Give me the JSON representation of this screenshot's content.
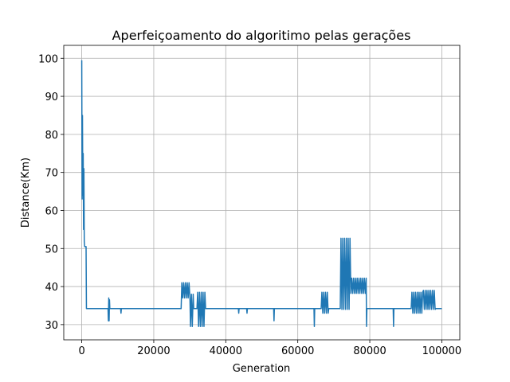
{
  "chart_data": {
    "type": "line",
    "title": "Aperfeiçoamento do algoritimo pelas gerações",
    "xlabel": "Generation",
    "ylabel": "Distance(Km)",
    "xlim": [
      -5000,
      105000
    ],
    "ylim": [
      26,
      103.4
    ],
    "xticks": [
      0,
      20000,
      40000,
      60000,
      80000,
      100000
    ],
    "yticks": [
      30,
      40,
      50,
      60,
      70,
      80,
      90,
      100
    ],
    "grid": true,
    "series": [
      {
        "color": "#1f77b4",
        "x": [
          0,
          100,
          200,
          300,
          400,
          500,
          600,
          700,
          800,
          1000,
          1200,
          1300,
          7300,
          7400,
          7500,
          7600,
          7700,
          7800,
          10800,
          10900,
          11000,
          27600,
          27800,
          28050,
          28300,
          28550,
          28800,
          29050,
          29300,
          29550,
          29800,
          30050,
          30200,
          30450,
          30700,
          30950,
          31100,
          32000,
          32200,
          32450,
          32700,
          32950,
          33200,
          33450,
          33700,
          33950,
          34200,
          34400,
          43500,
          43600,
          43700,
          45800,
          45900,
          46000,
          53300,
          53400,
          53500,
          64500,
          64600,
          64700,
          66500,
          66700,
          66950,
          67200,
          67450,
          67700,
          67950,
          68200,
          68450,
          68600,
          71800,
          72000,
          72250,
          72500,
          72750,
          73000,
          73250,
          73500,
          73750,
          74000,
          74250,
          74500,
          74750,
          75000,
          75250,
          75500,
          75750,
          76000,
          76250,
          76500,
          76750,
          77000,
          77250,
          77500,
          77750,
          78000,
          78250,
          78500,
          78750,
          79000,
          79100,
          79200,
          86500,
          86600,
          86700,
          91500,
          91700,
          91950,
          92200,
          92450,
          92700,
          92950,
          93200,
          93450,
          93700,
          93950,
          94200,
          94450,
          94700,
          94900,
          95150,
          95400,
          95650,
          95900,
          96150,
          96400,
          96650,
          96900,
          97150,
          97400,
          97650,
          97900,
          98150,
          98300,
          100000
        ],
        "values": [
          99.5,
          63,
          85,
          64,
          75,
          55,
          71,
          52,
          50.5,
          50.5,
          50.5,
          34.2,
          34.2,
          31,
          37,
          31,
          36.5,
          34.2,
          34.2,
          33,
          34.2,
          34.2,
          41,
          37,
          41,
          37,
          41,
          37,
          41,
          37,
          41,
          37,
          29.5,
          38,
          29.5,
          38,
          34.2,
          34.2,
          38.5,
          29.5,
          38.5,
          29.5,
          38.5,
          29.5,
          38.5,
          29.5,
          38.5,
          34.2,
          34.2,
          33,
          34.2,
          34.2,
          33,
          34.2,
          34.2,
          31,
          34.2,
          34.2,
          29.5,
          34.2,
          34.2,
          38.5,
          33,
          38.5,
          33,
          38.5,
          33,
          38.5,
          33,
          34.2,
          34.2,
          52.7,
          34,
          52.7,
          34,
          52.7,
          34,
          52.7,
          34,
          52.7,
          34,
          52.7,
          38.2,
          42.2,
          38.2,
          42.2,
          38.2,
          42.2,
          38.2,
          42.2,
          38.2,
          42.2,
          38.2,
          42.2,
          38.2,
          42.2,
          38.2,
          42.2,
          38.2,
          42.2,
          29.5,
          34.2,
          34.2,
          29.5,
          34.2,
          34.2,
          38.5,
          33,
          38.5,
          33,
          38.5,
          33,
          38.5,
          33,
          38.5,
          33,
          38.5,
          33,
          38.5,
          39,
          34,
          39,
          34,
          39,
          34,
          39,
          34,
          39,
          34,
          39,
          34,
          39,
          34,
          34.2,
          34.2
        ]
      }
    ]
  }
}
